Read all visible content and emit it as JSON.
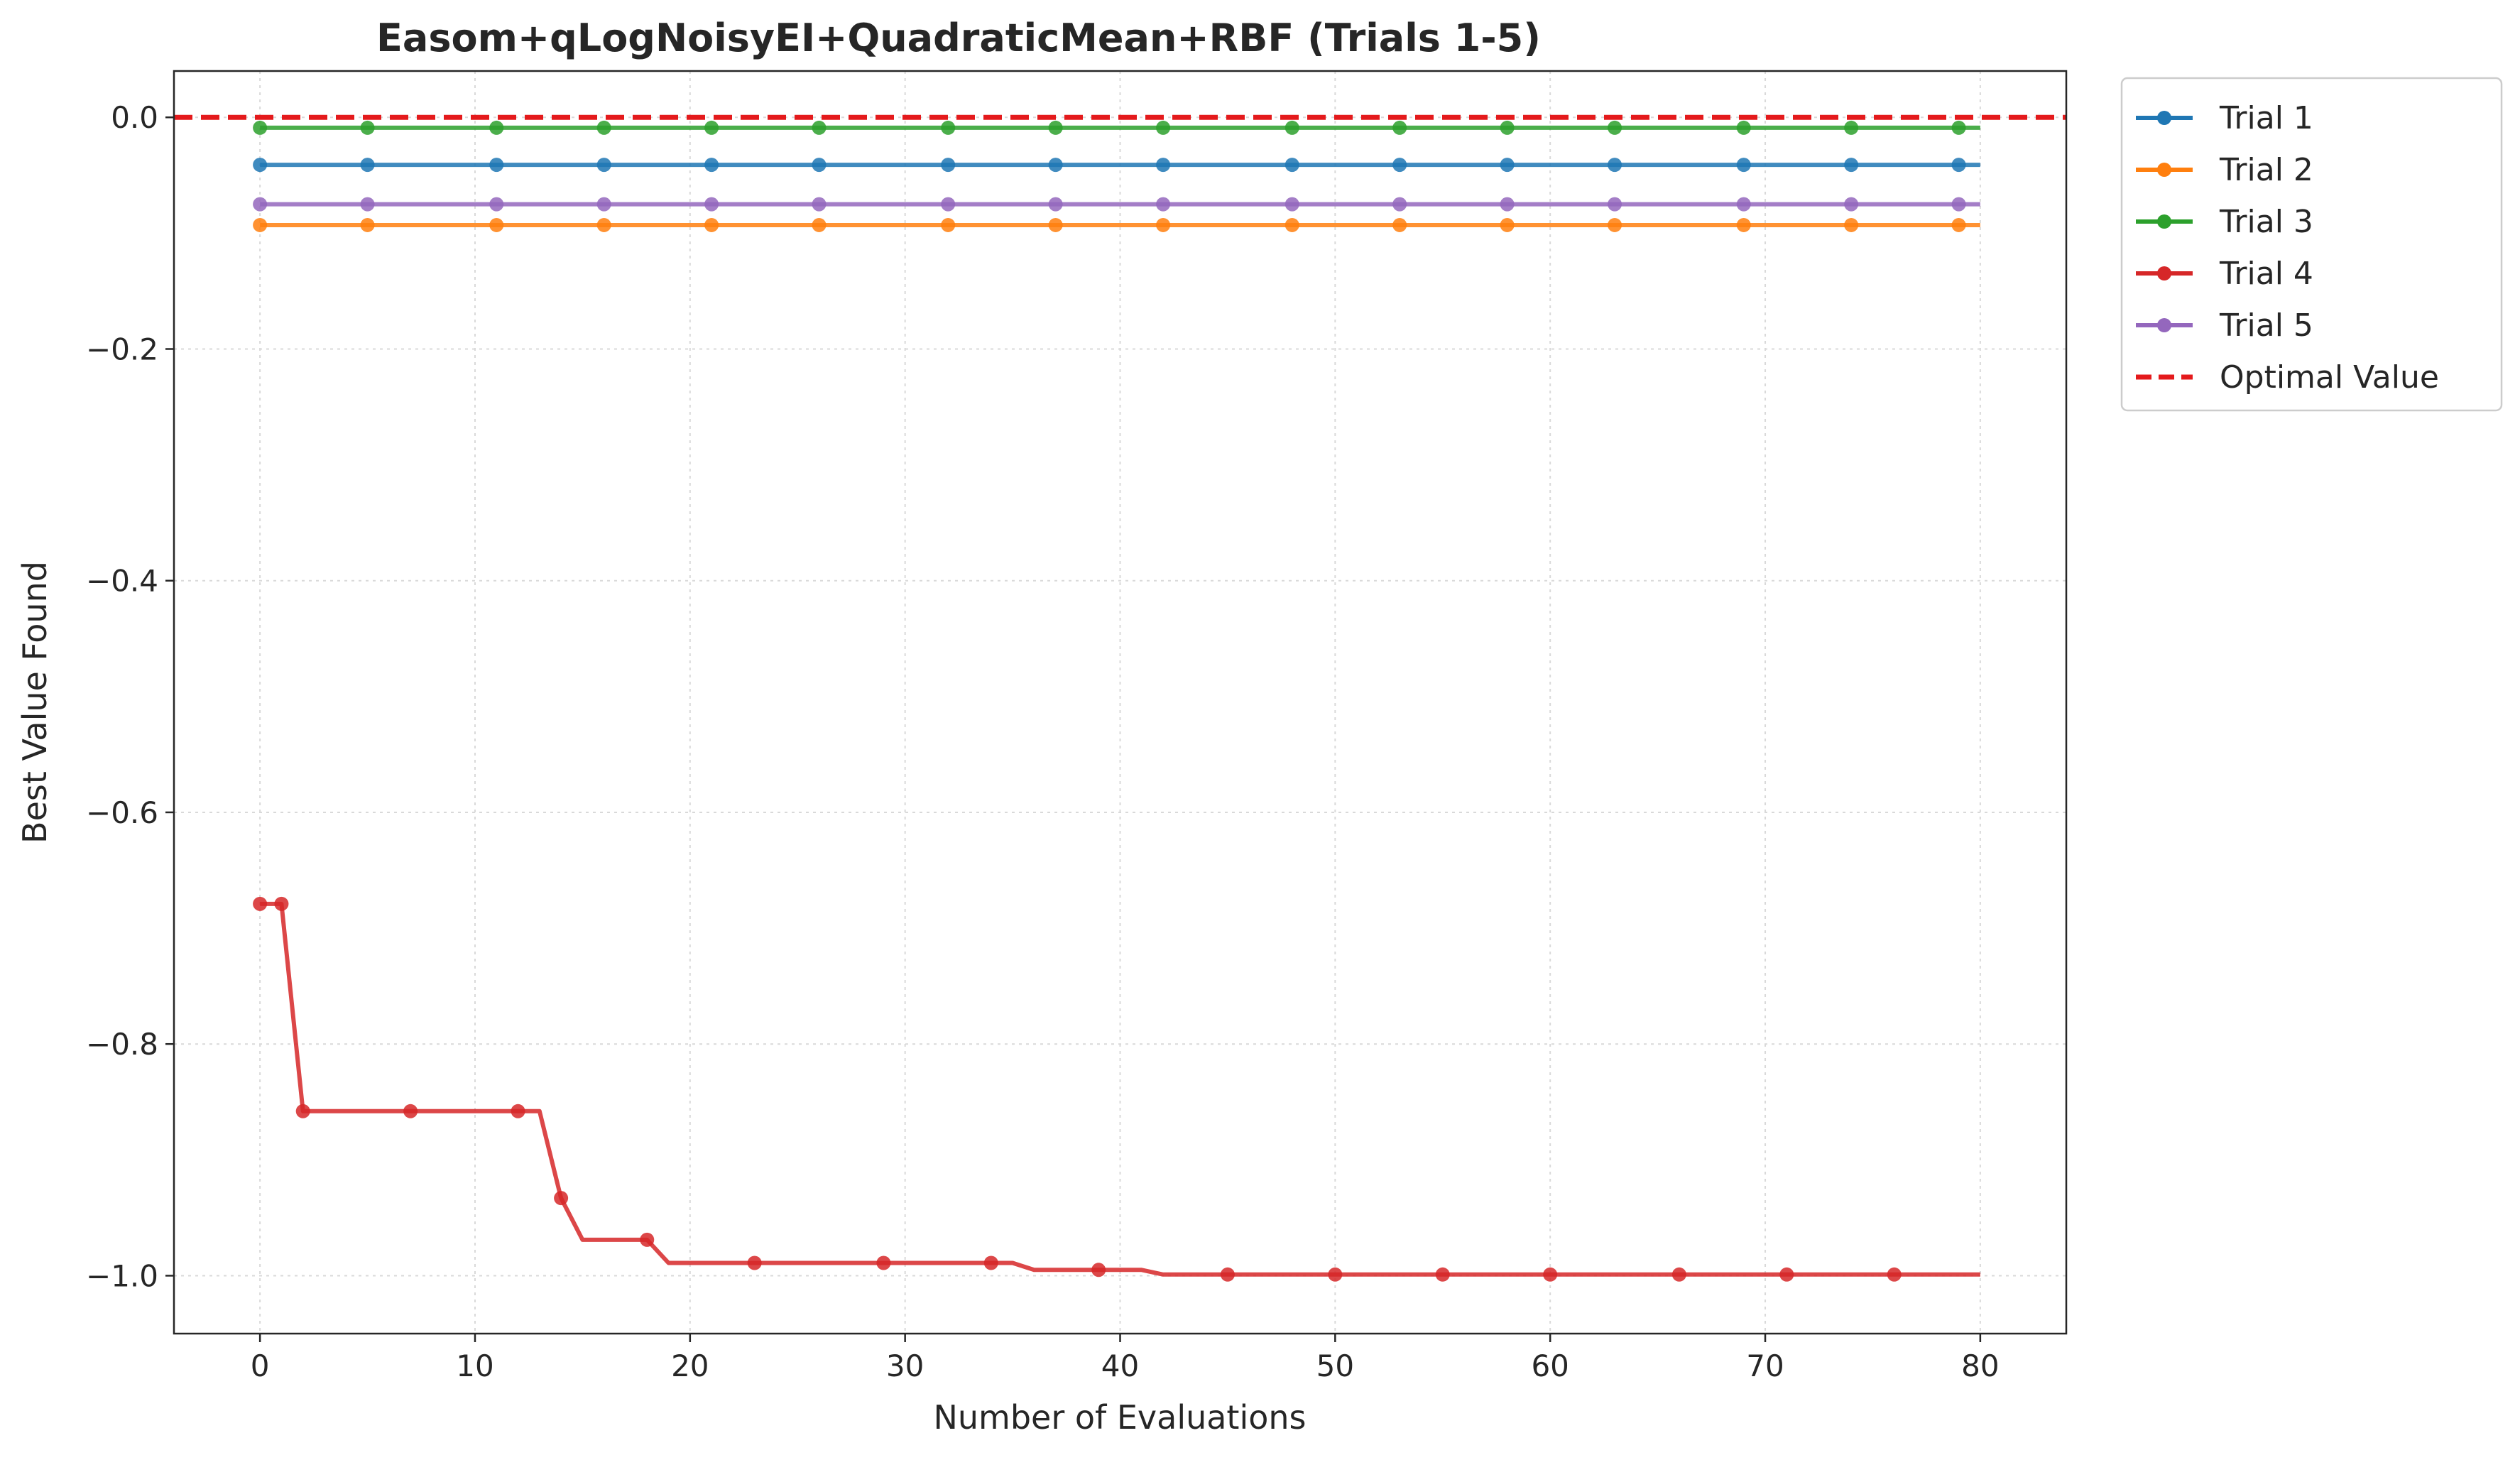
{
  "chart_data": {
    "type": "line",
    "title": "Easom+qLogNoisyEI+QuadraticMean+RBF (Trials 1-5)",
    "xlabel": "Number of Evaluations",
    "ylabel": "Best Value Found",
    "xlim": [
      -4,
      84
    ],
    "ylim": [
      -1.05,
      0.04
    ],
    "xticks": [
      0,
      10,
      20,
      30,
      40,
      50,
      60,
      70,
      80
    ],
    "yticks": [
      0.0,
      -0.2,
      -0.4,
      -0.6,
      -0.8,
      -1.0
    ],
    "xtick_labels": [
      "0",
      "10",
      "20",
      "30",
      "40",
      "50",
      "60",
      "70",
      "80"
    ],
    "ytick_labels": [
      "0.0",
      "−0.2",
      "−0.4",
      "−0.6",
      "−0.8",
      "−1.0"
    ],
    "grid": true,
    "legend_position": "outside-top-right",
    "series": [
      {
        "name": "Trial 1",
        "color": "#1f77b4",
        "x": [
          0,
          80
        ],
        "y": [
          -0.041,
          -0.041
        ],
        "marker_x": [
          0,
          5,
          11,
          16,
          21,
          26,
          32,
          37,
          42,
          48,
          53,
          58,
          63,
          69,
          74,
          79
        ]
      },
      {
        "name": "Trial 2",
        "color": "#ff7f0e",
        "x": [
          0,
          80
        ],
        "y": [
          -0.093,
          -0.093
        ],
        "marker_x": [
          0,
          5,
          11,
          16,
          21,
          26,
          32,
          37,
          42,
          48,
          53,
          58,
          63,
          69,
          74,
          79
        ]
      },
      {
        "name": "Trial 3",
        "color": "#2ca02c",
        "x": [
          0,
          80
        ],
        "y": [
          -0.009,
          -0.009
        ],
        "marker_x": [
          0,
          5,
          11,
          16,
          21,
          26,
          32,
          37,
          42,
          48,
          53,
          58,
          63,
          69,
          74,
          79
        ]
      },
      {
        "name": "Trial 4",
        "color": "#d62728",
        "x": [
          0,
          1,
          2,
          7,
          12,
          13,
          14,
          15,
          18,
          19,
          23,
          29,
          34,
          35,
          36,
          39,
          41,
          42,
          45,
          50,
          55,
          60,
          66,
          71,
          76,
          80
        ],
        "y": [
          -0.679,
          -0.679,
          -0.858,
          -0.858,
          -0.858,
          -0.858,
          -0.933,
          -0.969,
          -0.969,
          -0.989,
          -0.989,
          -0.989,
          -0.989,
          -0.989,
          -0.995,
          -0.995,
          -0.995,
          -0.999,
          -0.999,
          -0.999,
          -0.999,
          -0.999,
          -0.999,
          -0.999,
          -0.999,
          -0.999
        ],
        "marker_x": [
          0,
          1,
          2,
          7,
          12,
          14,
          18,
          23,
          29,
          34,
          39,
          45,
          50,
          55,
          60,
          66,
          71,
          76
        ]
      },
      {
        "name": "Trial 5",
        "color": "#9467bd",
        "x": [
          0,
          80
        ],
        "y": [
          -0.075,
          -0.075
        ],
        "marker_x": [
          0,
          5,
          11,
          16,
          21,
          26,
          32,
          37,
          42,
          48,
          53,
          58,
          63,
          69,
          74,
          79
        ]
      }
    ],
    "reference_line": {
      "name": "Optimal Value",
      "y": -1.0,
      "y_plot": 0.0,
      "color": "#e41a1c",
      "style": "dashed"
    }
  }
}
